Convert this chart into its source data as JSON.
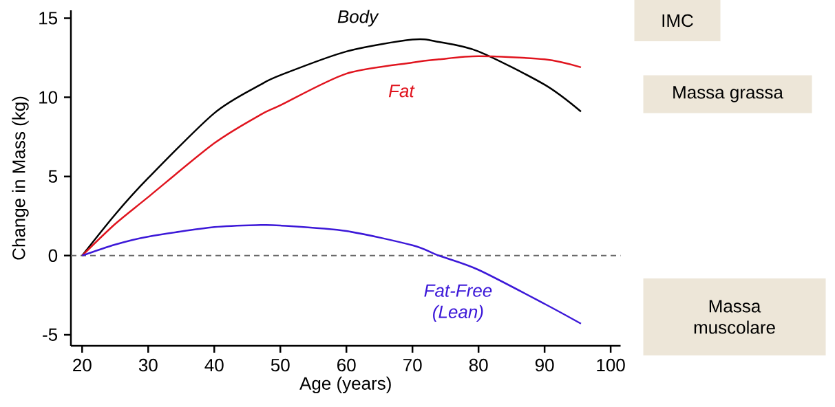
{
  "chart_data": {
    "type": "line",
    "xlabel": "Age (years)",
    "ylabel": "Change in Mass (kg)",
    "x": [
      20,
      25,
      30,
      40,
      47,
      50,
      60,
      70,
      74,
      80,
      90,
      95.5
    ],
    "series": [
      {
        "name": "Body",
        "color": "#000000",
        "values": [
          0,
          2.6,
          4.9,
          9.0,
          10.8,
          11.4,
          12.9,
          13.65,
          13.5,
          12.9,
          10.8,
          9.1
        ]
      },
      {
        "name": "Fat",
        "color": "#e0141e",
        "values": [
          0,
          2.0,
          3.7,
          7.1,
          8.9,
          9.5,
          11.5,
          12.2,
          12.4,
          12.6,
          12.4,
          11.9
        ]
      },
      {
        "name": "Fat-Free (Lean)",
        "color": "#3c18d8",
        "values": [
          0,
          0.7,
          1.2,
          1.8,
          1.93,
          1.9,
          1.55,
          0.65,
          0,
          -0.9,
          -3.05,
          -4.3
        ]
      }
    ],
    "xlim": [
      18.3,
      101.5
    ],
    "ylim": [
      -5.7,
      15.5
    ],
    "xticks": [
      20,
      30,
      40,
      50,
      60,
      70,
      80,
      90,
      100
    ],
    "yticks": [
      15,
      10,
      5,
      0,
      -5
    ],
    "ref_lines": [
      {
        "axis": "y",
        "value": 0,
        "color": "#666666",
        "line_style": "dashed"
      }
    ],
    "line_style": "solid",
    "annotations": [
      "IMC",
      "Massa grassa",
      "Massa muscolare"
    ]
  }
}
